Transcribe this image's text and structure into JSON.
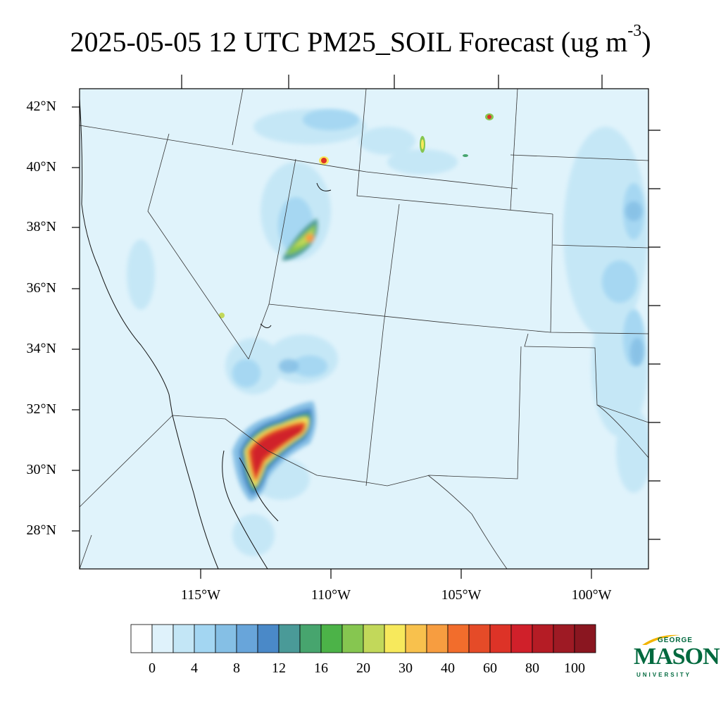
{
  "title": {
    "text": "2025-05-05 12 UTC PM25_SOIL Forecast (ug m",
    "superscript": "-3",
    "closing": ")"
  },
  "map": {
    "lat_labels": [
      "42°N",
      "40°N",
      "38°N",
      "36°N",
      "34°N",
      "32°N",
      "30°N",
      "28°N"
    ],
    "lon_labels": [
      "115°W",
      "110°W",
      "105°W",
      "100°W"
    ],
    "background_color": "#e0f3fb",
    "border_color": "#222222"
  },
  "colorbar": {
    "labels": [
      "0",
      "4",
      "8",
      "12",
      "16",
      "20",
      "30",
      "40",
      "60",
      "80",
      "100"
    ],
    "colors": [
      "#ffffff",
      "#dff2fb",
      "#c3e6f6",
      "#a3d6f2",
      "#85bfe5",
      "#68a5da",
      "#4a89c8",
      "#4a9a98",
      "#47a56e",
      "#4cb348",
      "#86c650",
      "#c2d85a",
      "#f7e95c",
      "#f8c14d",
      "#f79d40",
      "#f26d2c",
      "#e54b28",
      "#dd3327",
      "#d0202a",
      "#b51c25",
      "#9e1a24",
      "#8a1620"
    ]
  },
  "logo": {
    "george": "GEORGE",
    "mason": "MASON",
    "university": "UNIVERSITY",
    "color": "#00693e",
    "accent": "#f2b400"
  }
}
